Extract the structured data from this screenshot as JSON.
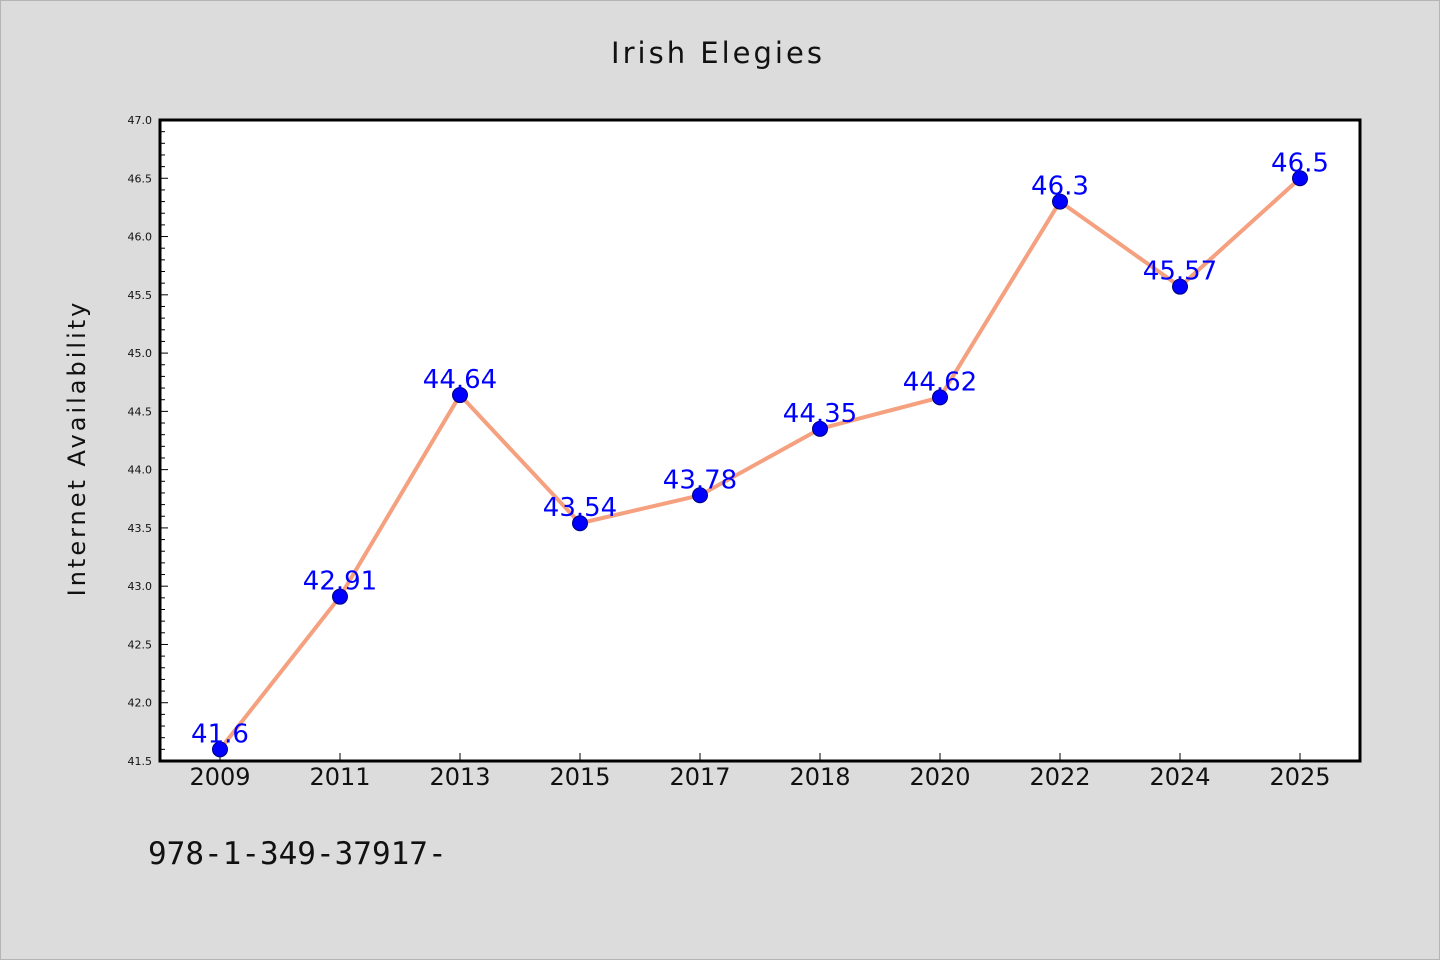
{
  "chart_data": {
    "type": "line",
    "title": "Irish Elegies",
    "xlabel": "",
    "ylabel": "Internet Availability",
    "categories": [
      "2009",
      "2011",
      "2013",
      "2015",
      "2017",
      "2018",
      "2020",
      "2022",
      "2024",
      "2025"
    ],
    "series": [
      {
        "values": [
          41.6,
          42.91,
          44.64,
          43.54,
          43.78,
          44.35,
          44.62,
          46.3,
          45.57,
          46.5
        ]
      }
    ],
    "data_labels": [
      "41.6",
      "42.91",
      "44.64",
      "43.54",
      "43.78",
      "44.35",
      "44.62",
      "46.3",
      "45.57",
      "46.5"
    ],
    "ylim": [
      41.5,
      47.0
    ],
    "yticks": [
      "41.5",
      "42.0",
      "42.5",
      "43.0",
      "43.5",
      "44.0",
      "44.5",
      "45.0",
      "45.5",
      "46.0",
      "46.5",
      "47.0"
    ],
    "grid": false,
    "line_color": "#f5a07e",
    "marker_color": "#0000ff",
    "label_color": "#0000ff"
  },
  "footer": {
    "text": "978-1-349-37917-"
  }
}
